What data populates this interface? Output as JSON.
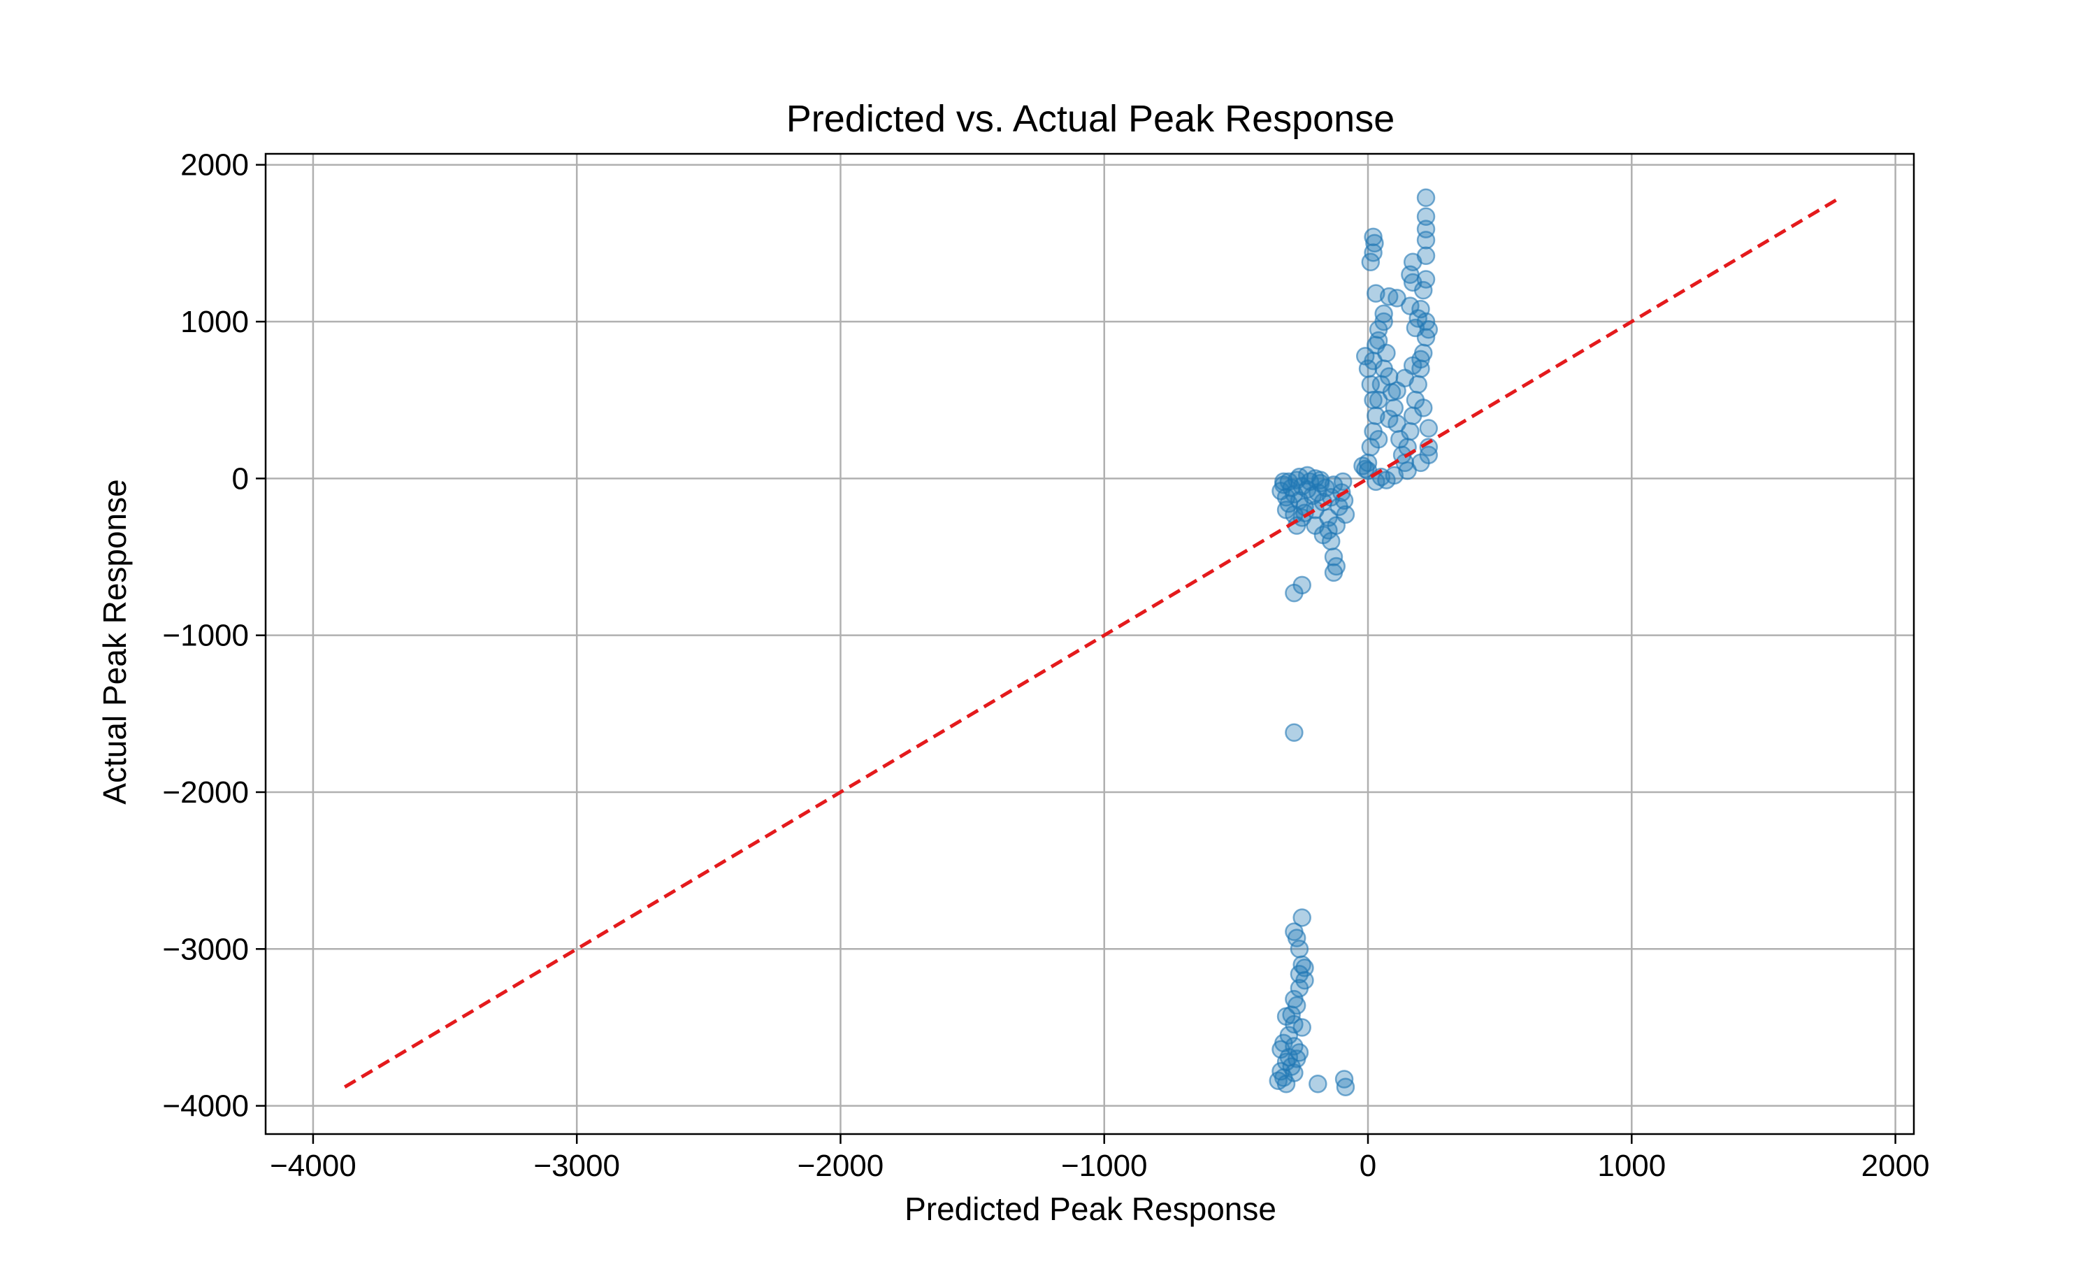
{
  "chart_data": {
    "type": "scatter",
    "title": "Predicted vs. Actual Peak Response",
    "xlabel": "Predicted Peak Response",
    "ylabel": "Actual Peak Response",
    "xlim": [
      -4180,
      2070
    ],
    "ylim": [
      -4180,
      2070
    ],
    "x_ticks": [
      -4000,
      -3000,
      -2000,
      -1000,
      0,
      1000,
      2000
    ],
    "y_ticks": [
      -4000,
      -3000,
      -2000,
      -1000,
      0,
      1000,
      2000
    ],
    "x_tick_labels": [
      "−4000",
      "−3000",
      "−2000",
      "−1000",
      "0",
      "1000",
      "2000"
    ],
    "y_tick_labels": [
      "−4000",
      "−3000",
      "−2000",
      "−1000",
      "0",
      "1000",
      "2000"
    ],
    "grid": true,
    "colors": {
      "points": "#1f77b4",
      "reference_line": "#e41a1c",
      "grid": "#b0b0b0",
      "axes": "#000000"
    },
    "reference_line": {
      "style": "dashed",
      "x": [
        -3880,
        1790
      ],
      "y": [
        -3880,
        1790
      ]
    },
    "series": [
      {
        "marker": "circle",
        "alpha": 0.35,
        "points": [
          [
            -330,
            -80
          ],
          [
            -320,
            -40
          ],
          [
            -310,
            -120
          ],
          [
            -300,
            -20
          ],
          [
            -300,
            -160
          ],
          [
            -290,
            -60
          ],
          [
            -280,
            -100
          ],
          [
            -270,
            -10
          ],
          [
            -260,
            -140
          ],
          [
            -250,
            -50
          ],
          [
            -240,
            -180
          ],
          [
            -230,
            -70
          ],
          [
            -220,
            -20
          ],
          [
            -210,
            -110
          ],
          [
            -200,
            -200
          ],
          [
            -190,
            -90
          ],
          [
            -180,
            -30
          ],
          [
            -170,
            -150
          ],
          [
            -160,
            -60
          ],
          [
            -150,
            -250
          ],
          [
            -140,
            -120
          ],
          [
            -130,
            -40
          ],
          [
            -120,
            -300
          ],
          [
            -110,
            -180
          ],
          [
            -100,
            -90
          ],
          [
            -95,
            -20
          ],
          [
            -90,
            -140
          ],
          [
            -85,
            -230
          ],
          [
            -320,
            -20
          ],
          [
            -260,
            10
          ],
          [
            -230,
            20
          ],
          [
            -200,
            0
          ],
          [
            -180,
            -10
          ],
          [
            -150,
            -330
          ],
          [
            -140,
            -400
          ],
          [
            -130,
            -500
          ],
          [
            -120,
            -560
          ],
          [
            -130,
            -600
          ],
          [
            -170,
            -360
          ],
          [
            -200,
            -300
          ],
          [
            -250,
            -250
          ],
          [
            -270,
            -300
          ],
          [
            -240,
            -220
          ],
          [
            -280,
            -230
          ],
          [
            -310,
            -200
          ],
          [
            -280,
            -730
          ],
          [
            -250,
            -680
          ],
          [
            -10,
            60
          ],
          [
            0,
            100
          ],
          [
            10,
            200
          ],
          [
            20,
            300
          ],
          [
            30,
            400
          ],
          [
            40,
            500
          ],
          [
            50,
            600
          ],
          [
            60,
            700
          ],
          [
            20,
            750
          ],
          [
            30,
            850
          ],
          [
            40,
            950
          ],
          [
            60,
            1050
          ],
          [
            70,
            800
          ],
          [
            80,
            650
          ],
          [
            90,
            550
          ],
          [
            100,
            450
          ],
          [
            110,
            350
          ],
          [
            120,
            250
          ],
          [
            130,
            150
          ],
          [
            140,
            100
          ],
          [
            150,
            200
          ],
          [
            160,
            300
          ],
          [
            170,
            400
          ],
          [
            180,
            500
          ],
          [
            190,
            600
          ],
          [
            200,
            700
          ],
          [
            210,
            800
          ],
          [
            220,
            900
          ],
          [
            230,
            950
          ],
          [
            220,
            1000
          ],
          [
            160,
            1100
          ],
          [
            170,
            1250
          ],
          [
            160,
            1300
          ],
          [
            170,
            1380
          ],
          [
            110,
            1150
          ],
          [
            80,
            1160
          ],
          [
            60,
            1000
          ],
          [
            40,
            880
          ],
          [
            30,
            1180
          ],
          [
            10,
            1380
          ],
          [
            20,
            1440
          ],
          [
            25,
            1500
          ],
          [
            20,
            1540
          ],
          [
            220,
            1270
          ],
          [
            220,
            1420
          ],
          [
            220,
            1520
          ],
          [
            220,
            1590
          ],
          [
            220,
            1670
          ],
          [
            220,
            1790
          ],
          [
            210,
            1200
          ],
          [
            200,
            1080
          ],
          [
            190,
            1020
          ],
          [
            180,
            960
          ],
          [
            230,
            200
          ],
          [
            230,
            150
          ],
          [
            200,
            100
          ],
          [
            150,
            50
          ],
          [
            100,
            20
          ],
          [
            50,
            10
          ],
          [
            30,
            -20
          ],
          [
            70,
            -10
          ],
          [
            0,
            50
          ],
          [
            -20,
            80
          ],
          [
            20,
            500
          ],
          [
            10,
            600
          ],
          [
            0,
            700
          ],
          [
            -10,
            780
          ],
          [
            40,
            250
          ],
          [
            80,
            380
          ],
          [
            110,
            560
          ],
          [
            140,
            640
          ],
          [
            170,
            720
          ],
          [
            200,
            760
          ],
          [
            210,
            450
          ],
          [
            230,
            320
          ],
          [
            -280,
            -1620
          ],
          [
            -250,
            -2800
          ],
          [
            -280,
            -2890
          ],
          [
            -270,
            -2930
          ],
          [
            -260,
            -3000
          ],
          [
            -250,
            -3100
          ],
          [
            -240,
            -3120
          ],
          [
            -260,
            -3160
          ],
          [
            -240,
            -3200
          ],
          [
            -260,
            -3250
          ],
          [
            -280,
            -3320
          ],
          [
            -270,
            -3360
          ],
          [
            -290,
            -3420
          ],
          [
            -310,
            -3430
          ],
          [
            -280,
            -3480
          ],
          [
            -250,
            -3500
          ],
          [
            -300,
            -3550
          ],
          [
            -320,
            -3600
          ],
          [
            -280,
            -3620
          ],
          [
            -260,
            -3660
          ],
          [
            -300,
            -3690
          ],
          [
            -330,
            -3640
          ],
          [
            -310,
            -3720
          ],
          [
            -290,
            -3750
          ],
          [
            -330,
            -3780
          ],
          [
            -320,
            -3820
          ],
          [
            -340,
            -3840
          ],
          [
            -310,
            -3860
          ],
          [
            -280,
            -3790
          ],
          [
            -270,
            -3700
          ],
          [
            -190,
            -3860
          ],
          [
            -90,
            -3830
          ],
          [
            -85,
            -3880
          ]
        ]
      }
    ]
  }
}
